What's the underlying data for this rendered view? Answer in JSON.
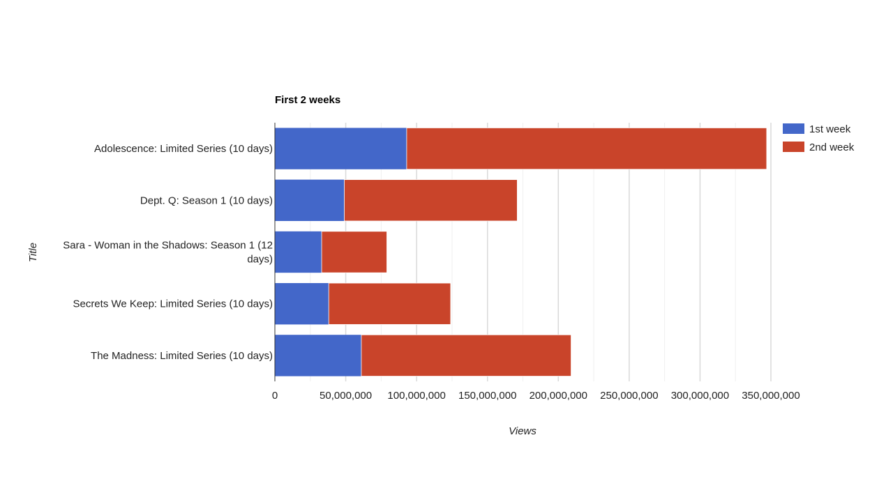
{
  "chart_data": {
    "type": "bar",
    "orientation": "horizontal",
    "stacked": true,
    "title": "First 2 weeks",
    "xlabel": "Views",
    "ylabel": "Title",
    "xlim": [
      0,
      350000000
    ],
    "x_ticks": [
      "0",
      "50,000,000",
      "100,000,000",
      "150,000,000",
      "200,000,000",
      "250,000,000",
      "300,000,000",
      "350,000,000"
    ],
    "grid": true,
    "legend_position": "top-right",
    "categories": [
      [
        "Adolescence: Limited Series (10 days)"
      ],
      [
        "Dept. Q: Season 1 (10 days)"
      ],
      [
        "Sara - Woman in the Shadows: Season 1 (12",
        "days)"
      ],
      [
        "Secrets We Keep: Limited Series (10 days)"
      ],
      [
        "The Madness: Limited Series (10 days)"
      ]
    ],
    "series": [
      {
        "name": "1st week",
        "color": "#4367c9",
        "values": [
          93000000,
          49000000,
          33000000,
          38000000,
          61000000
        ]
      },
      {
        "name": "2nd week",
        "color": "#c9442a",
        "values": [
          254000000,
          122000000,
          46000000,
          86000000,
          148000000
        ]
      }
    ]
  }
}
